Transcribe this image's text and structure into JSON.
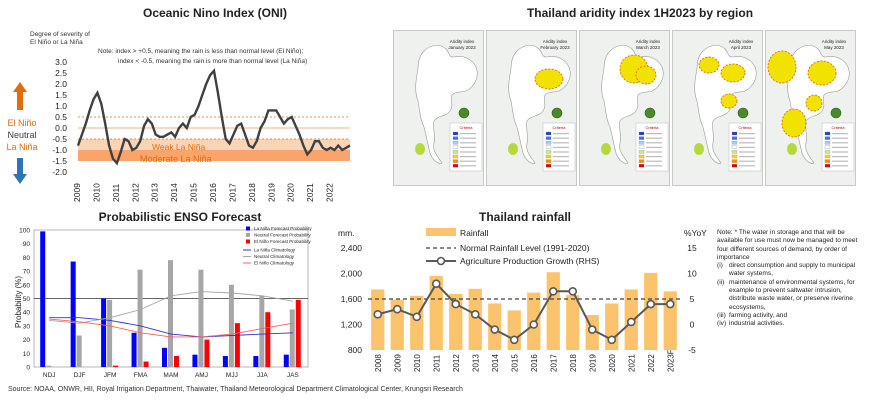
{
  "oni": {
    "title": "Oceanic Nino Index (ONI)",
    "ylabel": "Degree of severity of El Niño or La Niña",
    "note_line1": "Note: index > +0.5, meaning the rain is less than normal level (El Niño);",
    "note_line2": "index < -0.5, meaning the rain is more than normal level (La Niña)",
    "el_nino_label": "El Niño",
    "neutral_label": "Neutral",
    "la_nina_label": "La Niña",
    "weak_label": "Weak La Niña",
    "moderate_label": "Moderate La Niña",
    "colors": {
      "el_nino": "#e46c0a",
      "neutral": "#404040",
      "la_nina": "#e46c0a",
      "arrow_up": "#e46c0a",
      "arrow_down": "#2e75b6",
      "weak_band": "#fbd5b5",
      "moderate_band": "#f8a46b",
      "line": "#404040"
    }
  },
  "aridity": {
    "title": "Thailand aridity index 1H2023 by region",
    "maps": [
      {
        "header_line1": "Aridity index",
        "header_line2": "January 2023",
        "legend_title": "Criteria"
      },
      {
        "header_line1": "Aridity index",
        "header_line2": "February 2023",
        "legend_title": "Criteria"
      },
      {
        "header_line1": "Aridity index",
        "header_line2": "March 2023",
        "legend_title": "Criteria"
      },
      {
        "header_line1": "Aridity index",
        "header_line2": "April 2023",
        "legend_title": "Criteria"
      },
      {
        "header_line1": "Aridity index",
        "header_line2": "May 2023",
        "legend_title": "Criteria"
      }
    ],
    "legend_colors": [
      "#1f3fbf",
      "#3f6fff",
      "#9fd0ff",
      "#ffffff",
      "#c8e89a",
      "#ffd700",
      "#ff8c00",
      "#e00000"
    ]
  },
  "enso": {
    "title": "Probabilistic ENSO Forecast",
    "ylabel": "Probability (%)",
    "legend": [
      {
        "label": "La Niña Forecast Probability",
        "color": "#0000ff"
      },
      {
        "label": "Neutral Forecast Probability",
        "color": "#a6a6a6"
      },
      {
        "label": "El Niño Forecast Probability",
        "color": "#ff0000"
      },
      {
        "label": "La Niña Climatology",
        "color": "#3030d0"
      },
      {
        "label": "Neutral Climatology",
        "color": "#a6a6a6"
      },
      {
        "label": "El Niño Climatology",
        "color": "#ff6060"
      }
    ]
  },
  "rainfall": {
    "title": "Thailand rainfall",
    "left_unit": "mm.",
    "right_unit": "%YoY",
    "legend_rainfall": "Rainfall",
    "legend_normal": "Normal Rainfall Level (1991-2020)",
    "legend_agri": "Agriculture Production Growth (RHS)",
    "colors": {
      "bar": "#fbc46c",
      "normal": "#404040",
      "agri": "#595959"
    }
  },
  "notes": {
    "intro": "Note: * The water in storage and that will be available for use must now be managed to meet four different sources of demand, by order of importance",
    "items": [
      {
        "key": "(i)",
        "text": "direct consumption and supply to municipal water systems,"
      },
      {
        "key": "(ii)",
        "text": "maintenance of environmental systems, for example to prevent saltwater intrusion, distribute waste water, or preserve riverine ecosystems,"
      },
      {
        "key": "(iii)",
        "text": "farming activity, and"
      },
      {
        "key": "(iv)",
        "text": "industrial activities."
      }
    ]
  },
  "source": "Source:    NOAA, ONWR, HII, Royal Irrigation Department, Thaiwater, Thailand Meteorological Department Climatological Center, Krungsri Research",
  "chart_data": [
    {
      "type": "line",
      "title": "Oceanic Nino Index (ONI)",
      "ylabel": "Degree of severity of El Niño or La Niña",
      "ylim": [
        -2.0,
        3.0
      ],
      "yticks": [
        "3.0",
        "2.5",
        "2.0",
        "1.5",
        "1.0",
        "0.5",
        "0.0",
        "-0.5",
        "-1.0",
        "-1.5",
        "-2.0"
      ],
      "xticks": [
        "2009",
        "2010",
        "2011",
        "2012",
        "2013",
        "2014",
        "2015",
        "2016",
        "2017",
        "2018",
        "2019",
        "2020",
        "2021",
        "2022"
      ],
      "reference_lines": [
        0.5,
        0.0,
        -0.5
      ],
      "bands": [
        {
          "name": "Weak La Niña",
          "from": -0.5,
          "to": -1.0
        },
        {
          "name": "Moderate La Niña",
          "from": -1.0,
          "to": -1.5
        }
      ],
      "x": [
        2009.0,
        2009.2,
        2009.4,
        2009.6,
        2009.8,
        2010.0,
        2010.2,
        2010.4,
        2010.6,
        2010.8,
        2011.0,
        2011.2,
        2011.4,
        2011.6,
        2011.8,
        2012.0,
        2012.2,
        2012.4,
        2012.6,
        2012.8,
        2013.0,
        2013.2,
        2013.4,
        2013.6,
        2013.8,
        2014.0,
        2014.2,
        2014.4,
        2014.6,
        2014.8,
        2015.0,
        2015.2,
        2015.4,
        2015.6,
        2015.8,
        2016.0,
        2016.2,
        2016.4,
        2016.6,
        2016.8,
        2017.0,
        2017.2,
        2017.4,
        2017.6,
        2017.8,
        2018.0,
        2018.2,
        2018.4,
        2018.6,
        2018.8,
        2019.0,
        2019.2,
        2019.4,
        2019.6,
        2019.8,
        2020.0,
        2020.2,
        2020.4,
        2020.6,
        2020.8,
        2021.0,
        2021.2,
        2021.4,
        2021.6,
        2021.8,
        2022.0,
        2022.2,
        2022.4,
        2022.6,
        2022.8,
        2023.0
      ],
      "y": [
        -0.8,
        -0.3,
        0.2,
        0.8,
        1.3,
        1.6,
        1.1,
        0.2,
        -0.8,
        -1.4,
        -1.6,
        -1.1,
        -0.5,
        -0.6,
        -1.0,
        -0.9,
        -0.6,
        0.1,
        0.4,
        0.2,
        -0.3,
        -0.4,
        -0.4,
        -0.3,
        -0.2,
        -0.4,
        0.0,
        0.2,
        0.0,
        0.5,
        0.6,
        1.0,
        1.5,
        2.0,
        2.4,
        2.6,
        1.6,
        0.5,
        -0.5,
        -0.7,
        -0.3,
        0.1,
        0.2,
        -0.3,
        -0.8,
        -0.9,
        -0.6,
        0.0,
        0.3,
        0.8,
        0.8,
        0.8,
        0.5,
        0.2,
        0.4,
        0.5,
        0.1,
        -0.3,
        -0.8,
        -1.2,
        -1.0,
        -0.6,
        -0.6,
        -0.9,
        -1.0,
        -0.9,
        -1.0,
        -0.8,
        -1.0,
        -0.9,
        -0.8
      ]
    },
    {
      "type": "bar",
      "title": "Probabilistic ENSO Forecast",
      "ylabel": "Probability (%)",
      "ylim": [
        0,
        100
      ],
      "yticks": [
        0,
        10,
        20,
        30,
        40,
        50,
        60,
        70,
        80,
        90,
        100
      ],
      "categories": [
        "NDJ",
        "DJF",
        "JFM",
        "FMA",
        "MAM",
        "AMJ",
        "MJJ",
        "JJA",
        "JAS"
      ],
      "series": [
        {
          "name": "La Niña Forecast Probability",
          "values": [
            99,
            77,
            50,
            25,
            14,
            9,
            8,
            8,
            9
          ]
        },
        {
          "name": "Neutral Forecast Probability",
          "values": [
            1,
            23,
            49,
            71,
            78,
            71,
            60,
            52,
            42
          ]
        },
        {
          "name": "El Niño Forecast Probability",
          "values": [
            0,
            0,
            1,
            4,
            8,
            20,
            32,
            40,
            49
          ]
        },
        {
          "name": "La Niña Climatology",
          "values": [
            36,
            36,
            34,
            30,
            24,
            22,
            23,
            24,
            25
          ]
        },
        {
          "name": "Neutral Climatology",
          "values": [
            34,
            32,
            36,
            42,
            52,
            55,
            54,
            52,
            48
          ]
        },
        {
          "name": "El Niño Climatology",
          "values": [
            35,
            33,
            30,
            25,
            22,
            22,
            24,
            28,
            32
          ]
        }
      ],
      "reference_line": 50
    },
    {
      "type": "bar",
      "title": "Thailand rainfall",
      "categories": [
        "2008",
        "2009",
        "2010",
        "2011",
        "2012",
        "2013",
        "2014",
        "2015",
        "2016",
        "2017",
        "2018",
        "2019",
        "2020",
        "2021",
        "2022",
        "2023F"
      ],
      "yleft": {
        "unit": "mm.",
        "ylim": [
          800,
          2400
        ],
        "ticks": [
          "800",
          "1,200",
          "1,600",
          "2,000",
          "2,400"
        ]
      },
      "yright": {
        "unit": "%YoY",
        "ylim": [
          -5,
          15
        ],
        "ticks": [
          "-5",
          "0",
          "5",
          "10",
          "15"
        ]
      },
      "series": [
        {
          "name": "Rainfall",
          "axis": "left",
          "values": [
            1750,
            1590,
            1650,
            1960,
            1680,
            1760,
            1530,
            1420,
            1700,
            2020,
            1660,
            1350,
            1530,
            1750,
            2010,
            1720
          ]
        },
        {
          "name": "Normal Rainfall Level (1991-2020)",
          "axis": "left",
          "values": [
            1600,
            1600,
            1600,
            1600,
            1600,
            1600,
            1600,
            1600,
            1600,
            1600,
            1600,
            1600,
            1600,
            1600,
            1600,
            1600
          ]
        },
        {
          "name": "Agriculture Production Growth (RHS)",
          "axis": "right",
          "values": [
            2,
            3,
            1.5,
            8,
            4,
            2,
            -1,
            -3,
            0,
            6.5,
            6.5,
            -1,
            -3,
            0.5,
            4,
            4
          ]
        }
      ]
    }
  ]
}
